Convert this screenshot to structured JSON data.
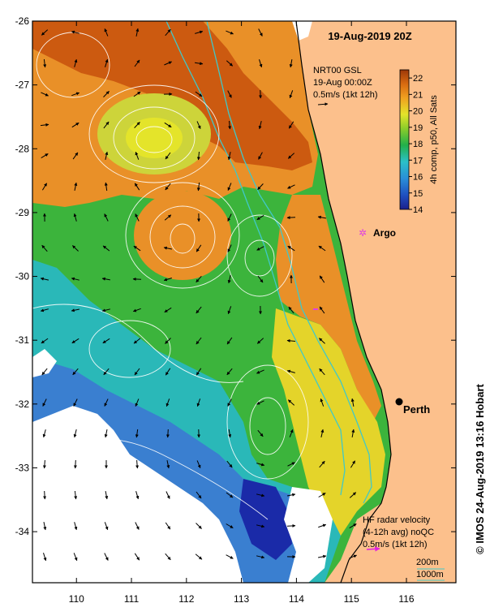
{
  "title": "19-Aug-2019 20Z",
  "product": {
    "line1": "NRT00 GSL",
    "line2": "19-Aug 00:00Z",
    "line3": "0.5m/s (1kt 12h)"
  },
  "colorbar": {
    "label": "4h comp, p50, All Sats",
    "ticks": [
      "22",
      "21",
      "20",
      "19",
      "18",
      "17",
      "16",
      "15",
      "14"
    ],
    "min": 14,
    "max": 22.5,
    "colors": [
      "#1a1f8c",
      "#1f4fc0",
      "#2a8ed8",
      "#2bc0c8",
      "#22b04a",
      "#8ccd2a",
      "#e4e42a",
      "#f0a020",
      "#d86a10",
      "#9c3808"
    ]
  },
  "places": {
    "argo": "Argo",
    "perth": "Perth"
  },
  "hf_radar": {
    "line1": "HF radar velocity",
    "line2": "(4-12h avg) noQC",
    "line3": "0.5m/s (1kt 12h)"
  },
  "isobaths": {
    "shallow": "200m",
    "deep": "1000m"
  },
  "copyright": "© IMOS 24-Aug-2019 13:16 Hobart",
  "axes": {
    "x_ticks": [
      "110",
      "111",
      "112",
      "113",
      "114",
      "115",
      "116"
    ],
    "y_ticks": [
      "-26",
      "-27",
      "-28",
      "-29",
      "-30",
      "-31",
      "-32",
      "-33",
      "-34"
    ],
    "xlim": [
      109.2,
      116.9
    ],
    "ylim": [
      -34.8,
      -26.0
    ]
  },
  "colors": {
    "land": "#fcc08c",
    "coast": "#000000",
    "isobath": "#40c8c8",
    "argo": "#e040e0",
    "hf_arrow": "#e020e0"
  }
}
